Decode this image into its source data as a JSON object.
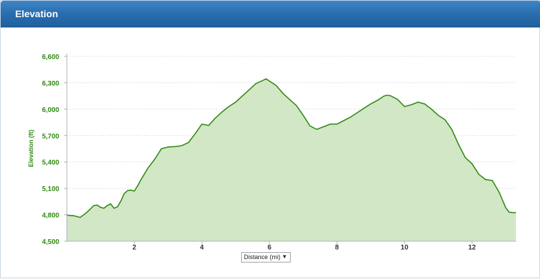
{
  "header": {
    "title": "Elevation"
  },
  "axis_selector": {
    "label": "Distance (mi)",
    "arrow": "▼"
  },
  "colors": {
    "line": "#2f8a12",
    "fill": "#d2e7c6",
    "tick_text": "#2f8a12",
    "grid": "#d8dde2",
    "header": "#2a6fb0"
  },
  "chart_data": {
    "type": "area",
    "ylabel": "Elevation (ft)",
    "xlabel": "Distance (mi)",
    "xlim": [
      0,
      13.3
    ],
    "ylim": [
      4500,
      6600
    ],
    "yticks": [
      "4,500",
      "4,800",
      "5,100",
      "5,400",
      "5,700",
      "6,000",
      "6,300",
      "6,600"
    ],
    "ytick_values": [
      4500,
      4800,
      5100,
      5400,
      5700,
      6000,
      6300,
      6600
    ],
    "xticks": [
      "2",
      "4",
      "6",
      "8",
      "10",
      "12"
    ],
    "xtick_values": [
      2,
      4,
      6,
      8,
      10,
      12
    ],
    "grid": true,
    "series": [
      {
        "x": [
          0,
          0.2,
          0.4,
          0.6,
          0.8,
          0.9,
          1.0,
          1.1,
          1.2,
          1.3,
          1.4,
          1.5,
          1.6,
          1.7,
          1.8,
          1.9,
          2.0,
          2.1,
          2.2,
          2.4,
          2.6,
          2.8,
          3.0,
          3.2,
          3.4,
          3.6,
          3.8,
          4.0,
          4.2,
          4.4,
          4.6,
          4.8,
          5.0,
          5.2,
          5.4,
          5.6,
          5.8,
          5.9,
          6.0,
          6.2,
          6.4,
          6.6,
          6.8,
          7.0,
          7.2,
          7.4,
          7.6,
          7.8,
          8.0,
          8.2,
          8.4,
          8.6,
          8.8,
          9.0,
          9.2,
          9.4,
          9.5,
          9.6,
          9.8,
          10.0,
          10.2,
          10.4,
          10.6,
          10.8,
          11.0,
          11.2,
          11.4,
          11.6,
          11.8,
          12.0,
          12.2,
          12.4,
          12.6,
          12.8,
          13.0,
          13.1,
          13.2,
          13.3
        ],
        "y": [
          4795,
          4790,
          4770,
          4830,
          4905,
          4910,
          4885,
          4875,
          4905,
          4925,
          4875,
          4890,
          4955,
          5040,
          5075,
          5080,
          5070,
          5130,
          5200,
          5330,
          5430,
          5550,
          5570,
          5575,
          5585,
          5620,
          5720,
          5830,
          5815,
          5900,
          5970,
          6030,
          6080,
          6150,
          6220,
          6290,
          6325,
          6345,
          6320,
          6270,
          6180,
          6110,
          6040,
          5930,
          5810,
          5770,
          5800,
          5830,
          5830,
          5870,
          5910,
          5960,
          6010,
          6060,
          6100,
          6150,
          6160,
          6150,
          6110,
          6030,
          6050,
          6080,
          6060,
          6000,
          5930,
          5880,
          5770,
          5600,
          5450,
          5380,
          5260,
          5200,
          5190,
          5060,
          4880,
          4830,
          4825,
          4825
        ]
      }
    ]
  }
}
